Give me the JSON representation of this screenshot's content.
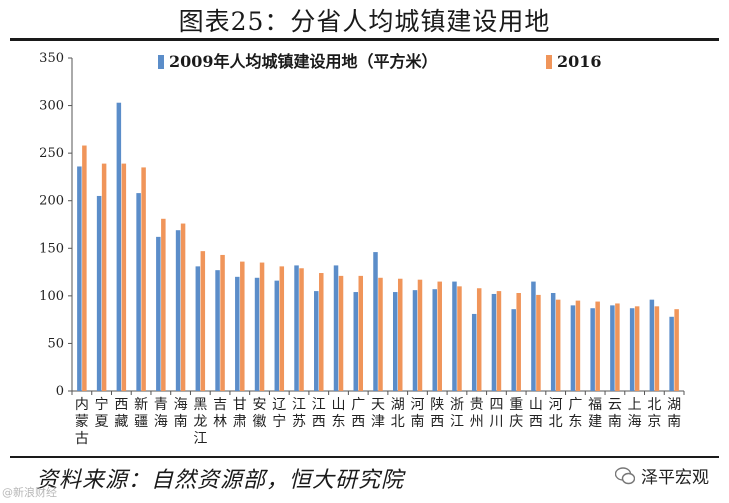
{
  "page_title": "图表25：分省人均城镇建设用地",
  "source_text": "资料来源：自然资源部，恒大研究院",
  "brand": "泽平宏观",
  "watermark": "@新浪财经",
  "chart_data": {
    "type": "bar",
    "title": "图表25：分省人均城镇建设用地",
    "ylim": [
      0,
      350
    ],
    "yticks": [
      0,
      50,
      100,
      150,
      200,
      250,
      300,
      350
    ],
    "categories": [
      "内蒙古",
      "宁夏",
      "西藏",
      "新疆",
      "青海",
      "海南",
      "黑龙江",
      "吉林",
      "甘肃",
      "安徽",
      "辽宁",
      "江苏",
      "江西",
      "山东",
      "广西",
      "天津",
      "湖北",
      "河南",
      "陕西",
      "浙江",
      "贵州",
      "四川",
      "重庆",
      "山西",
      "河北",
      "广东",
      "福建",
      "云南",
      "上海",
      "北京",
      "湖南"
    ],
    "series": [
      {
        "name": "2009年人均城镇建设用地（平方米）",
        "color": "#5b8dc9",
        "values": [
          236,
          205,
          303,
          208,
          162,
          169,
          131,
          127,
          120,
          119,
          116,
          132,
          105,
          132,
          104,
          146,
          104,
          106,
          107,
          115,
          81,
          102,
          86,
          115,
          103,
          90,
          87,
          90,
          87,
          96,
          78
        ]
      },
      {
        "name": "2016",
        "color": "#f0955a",
        "values": [
          258,
          239,
          239,
          235,
          181,
          176,
          147,
          143,
          136,
          135,
          131,
          129,
          124,
          121,
          121,
          119,
          118,
          117,
          115,
          110,
          108,
          105,
          103,
          101,
          96,
          95,
          94,
          92,
          89,
          89,
          86
        ]
      }
    ]
  }
}
